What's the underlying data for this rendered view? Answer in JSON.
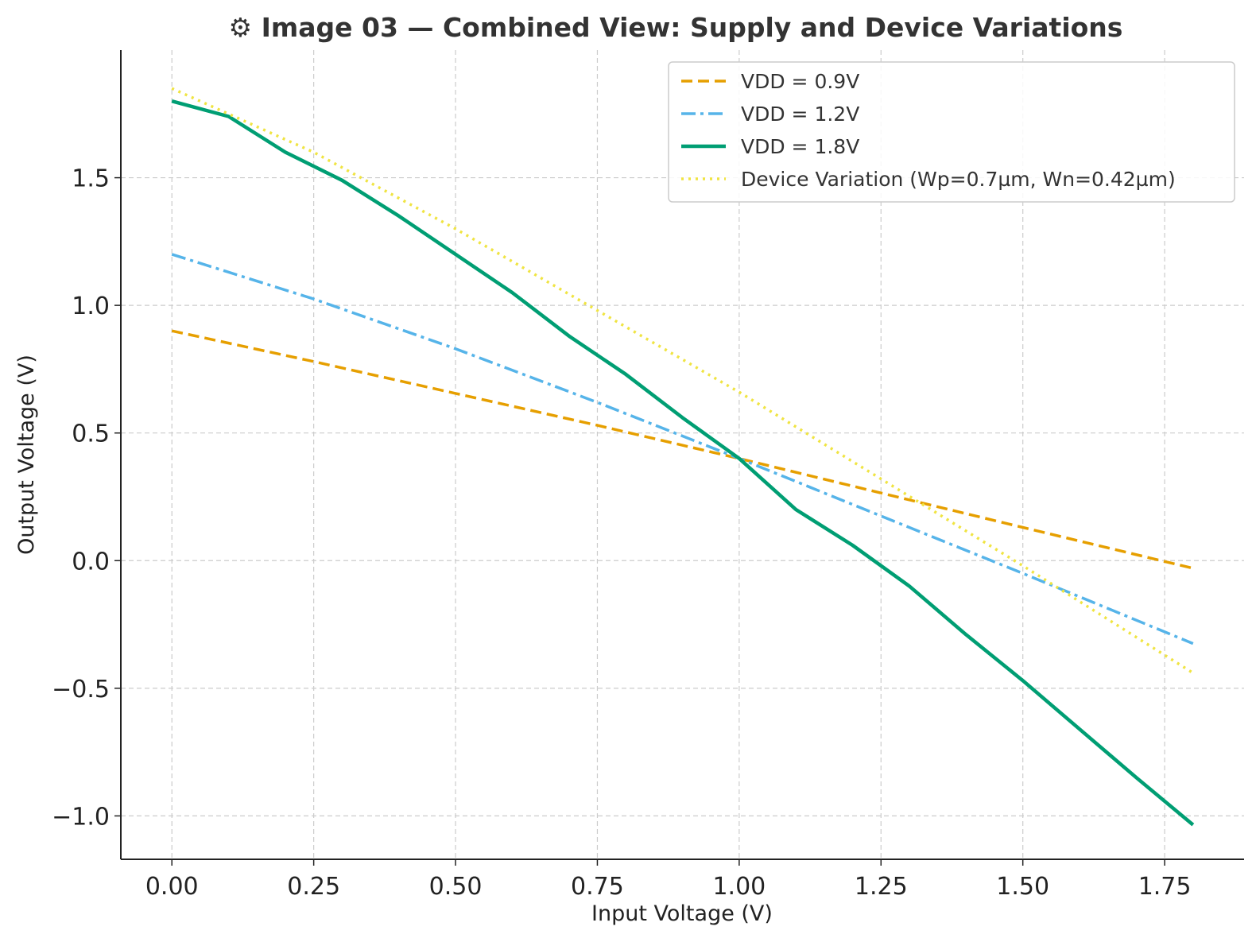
{
  "chart_data": {
    "type": "line",
    "title": "⚙ Image 03 — Combined View: Supply and Device Variations",
    "xlabel": "Input Voltage (V)",
    "ylabel": "Output Voltage (V)",
    "xlim": [
      -0.09,
      1.89
    ],
    "ylim": [
      -1.17,
      2.0
    ],
    "xticks": [
      0.0,
      0.25,
      0.5,
      0.75,
      1.0,
      1.25,
      1.5,
      1.75
    ],
    "xtick_labels": [
      "0.00",
      "0.25",
      "0.50",
      "0.75",
      "1.00",
      "1.25",
      "1.50",
      "1.75"
    ],
    "yticks": [
      -1.0,
      -0.5,
      0.0,
      0.5,
      1.0,
      1.5
    ],
    "ytick_labels": [
      "−1.0",
      "−0.5",
      "0.0",
      "0.5",
      "1.0",
      "1.5"
    ],
    "grid": true,
    "legend_position": "top-right",
    "series": [
      {
        "name": "VDD = 0.9V",
        "color": "#E69F00",
        "style": "dashed",
        "x": [
          0.0,
          0.25,
          0.5,
          0.75,
          1.0,
          1.25,
          1.5,
          1.8
        ],
        "y": [
          0.9,
          0.78,
          0.655,
          0.53,
          0.4,
          0.265,
          0.13,
          -0.03
        ]
      },
      {
        "name": "VDD = 1.2V",
        "color": "#56B4E9",
        "style": "dashdot",
        "x": [
          0.0,
          0.25,
          0.5,
          0.75,
          1.0,
          1.25,
          1.5,
          1.8
        ],
        "y": [
          1.2,
          1.025,
          0.83,
          0.62,
          0.4,
          0.175,
          -0.05,
          -0.325
        ]
      },
      {
        "name": "VDD = 1.8V",
        "color": "#009E73",
        "style": "solid",
        "x": [
          0.0,
          0.1,
          0.2,
          0.3,
          0.4,
          0.5,
          0.6,
          0.7,
          0.8,
          0.9,
          1.0,
          1.1,
          1.2,
          1.3,
          1.4,
          1.5,
          1.6,
          1.7,
          1.8
        ],
        "y": [
          1.8,
          1.74,
          1.6,
          1.49,
          1.35,
          1.2,
          1.05,
          0.88,
          0.73,
          0.56,
          0.4,
          0.2,
          0.06,
          -0.1,
          -0.29,
          -0.47,
          -0.66,
          -0.85,
          -1.035
        ]
      },
      {
        "name": "Device Variation (Wp=0.7µm, Wn=0.42µm)",
        "color": "#F0E442",
        "style": "dotted",
        "x": [
          0.0,
          0.25,
          0.5,
          0.75,
          1.0,
          1.25,
          1.5,
          1.8
        ],
        "y": [
          1.85,
          1.6,
          1.3,
          0.98,
          0.66,
          0.32,
          -0.02,
          -0.44
        ]
      }
    ]
  }
}
